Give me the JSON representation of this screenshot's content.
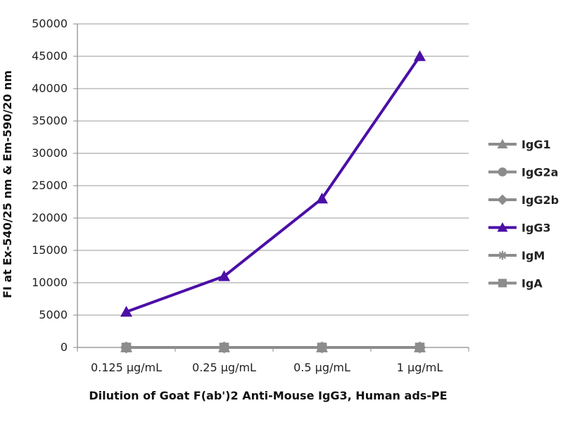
{
  "chart_data": {
    "type": "line",
    "title": "",
    "xlabel": "Dilution of Goat F(ab')2 Anti-Mouse IgG3, Human ads-PE",
    "ylabel": "FI at Ex-540/25  nm & Em-590/20  nm",
    "categories": [
      "0.125 µg/mL",
      "0.25 µg/mL",
      "0.5 µg/mL",
      "1 µg/mL"
    ],
    "ylim": [
      0,
      50000
    ],
    "yticks": [
      0,
      5000,
      10000,
      15000,
      20000,
      25000,
      30000,
      35000,
      40000,
      45000,
      50000
    ],
    "grid": true,
    "legend_position": "right",
    "series": [
      {
        "name": "IgG1",
        "values": [
          0,
          0,
          0,
          0
        ],
        "color": "#8c8c8c",
        "marker": "triangle"
      },
      {
        "name": "IgG2a",
        "values": [
          0,
          0,
          0,
          0
        ],
        "color": "#8c8c8c",
        "marker": "circle"
      },
      {
        "name": "IgG2b",
        "values": [
          0,
          0,
          0,
          0
        ],
        "color": "#8c8c8c",
        "marker": "diamond"
      },
      {
        "name": "IgG3",
        "values": [
          5500,
          11000,
          23000,
          45000
        ],
        "color": "#4b0fa6",
        "marker": "triangle"
      },
      {
        "name": "IgM",
        "values": [
          0,
          0,
          0,
          0
        ],
        "color": "#8c8c8c",
        "marker": "star"
      },
      {
        "name": "IgA",
        "values": [
          0,
          0,
          0,
          0
        ],
        "color": "#8c8c8c",
        "marker": "square"
      }
    ]
  }
}
